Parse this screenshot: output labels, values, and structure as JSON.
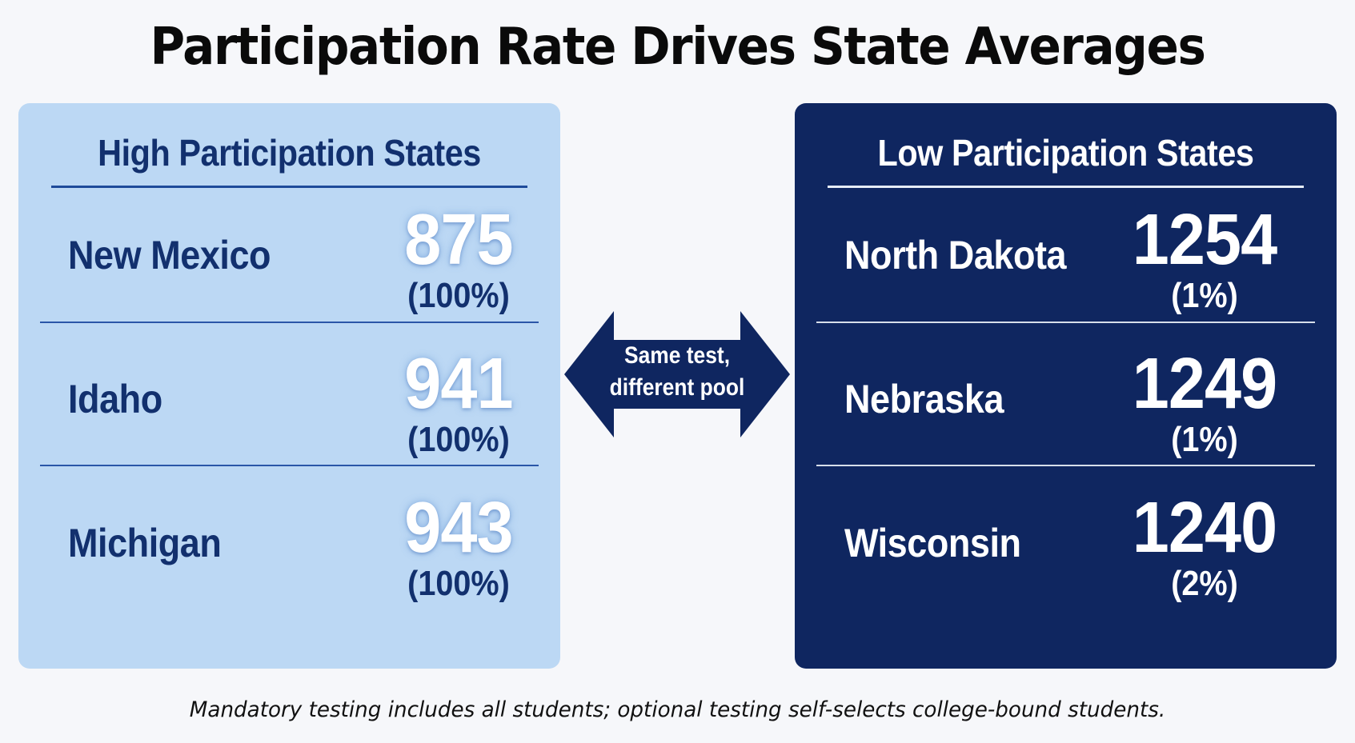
{
  "title": "Participation Rate Drives State Averages",
  "high_panel": {
    "heading": "High Participation States",
    "rows": [
      {
        "state": "New Mexico",
        "score": "875",
        "rate": "(100%)"
      },
      {
        "state": "Idaho",
        "score": "941",
        "rate": "(100%)"
      },
      {
        "state": "Michigan",
        "score": "943",
        "rate": "(100%)"
      }
    ]
  },
  "low_panel": {
    "heading": "Low Participation States",
    "rows": [
      {
        "state": "North Dakota",
        "score": "1254",
        "rate": "(1%)"
      },
      {
        "state": "Nebraska",
        "score": "1249",
        "rate": "(1%)"
      },
      {
        "state": "Wisconsin",
        "score": "1240",
        "rate": "(2%)"
      }
    ]
  },
  "arrow": {
    "line1": "Same test,",
    "line2": "different pool",
    "icon": "double-headed-arrow-icon",
    "color": "#0f2660"
  },
  "footnote": "Mandatory testing includes all students; optional testing self-selects college-bound students.",
  "colors": {
    "high_panel_bg": "#bcd8f4",
    "low_panel_bg": "#0f2660",
    "high_text": "#12306e"
  }
}
